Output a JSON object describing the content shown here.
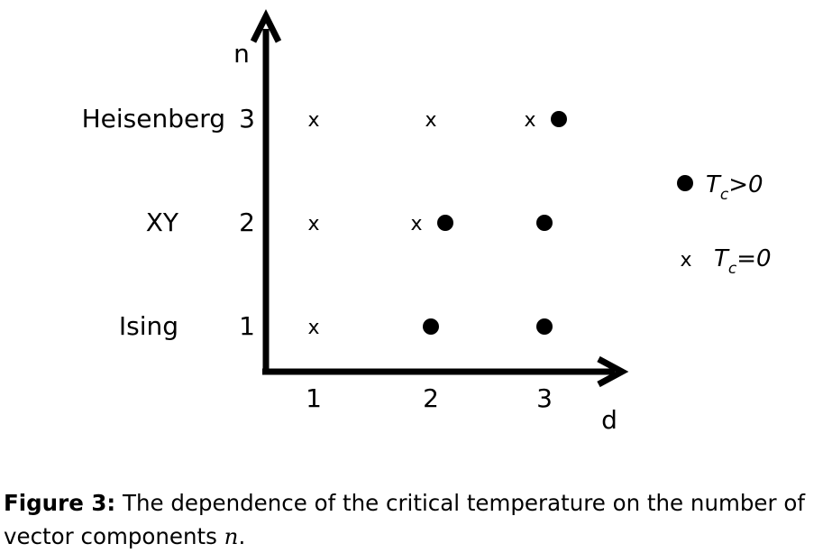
{
  "diagram": {
    "axes": {
      "x_label": "d",
      "y_label": "n",
      "x_ticks": [
        "1",
        "2",
        "3"
      ],
      "y_ticks": [
        "1",
        "2",
        "3"
      ]
    },
    "row_names": [
      "Ising",
      "XY",
      "Heisenberg"
    ],
    "cross_symbol": "x",
    "cells": [
      {
        "n": 1,
        "d": 1,
        "mark": "cross"
      },
      {
        "n": 1,
        "d": 2,
        "mark": "dot"
      },
      {
        "n": 1,
        "d": 3,
        "mark": "dot"
      },
      {
        "n": 2,
        "d": 1,
        "mark": "cross"
      },
      {
        "n": 2,
        "d": 2,
        "mark": "cross+dot"
      },
      {
        "n": 2,
        "d": 3,
        "mark": "dot"
      },
      {
        "n": 3,
        "d": 1,
        "mark": "cross"
      },
      {
        "n": 3,
        "d": 2,
        "mark": "cross"
      },
      {
        "n": 3,
        "d": 3,
        "mark": "cross+dot"
      }
    ],
    "legend": [
      {
        "symbol": "dot",
        "label_main": "T",
        "label_sub": "c",
        "label_rest": ">0"
      },
      {
        "symbol": "x",
        "label_main": "T",
        "label_sub": "c",
        "label_rest": "=0"
      }
    ]
  },
  "caption": {
    "label": "Figure 3:",
    "text": " The dependence of the critical temperature on the number of vector components ",
    "variable": "n",
    "end": "."
  },
  "colors": {
    "ink": "#000000",
    "background": "#ffffff"
  }
}
